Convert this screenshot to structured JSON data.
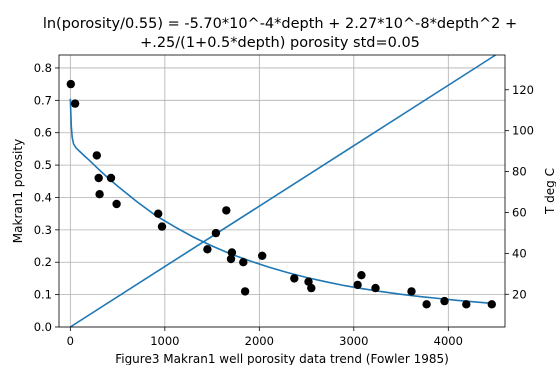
{
  "chart_data": {
    "type": "scatter",
    "title_line1": "ln(porosity/0.55) = -5.70*10^-4*depth + 2.27*10^-8*depth^2 +",
    "title_line2": "+.25/(1+0.5*depth)       porosity std=0.05",
    "xlabel": "Figure3 Makran1 well porosity data trend (Fowler 1985)",
    "ylabel": "Makran1 porosity",
    "y2label": "T deg C",
    "xlim": [
      -120,
      4600
    ],
    "ylim": [
      0,
      0.84
    ],
    "y2lim": [
      4,
      137
    ],
    "xticks": [
      0,
      1000,
      2000,
      3000,
      4000
    ],
    "yticks": [
      0.0,
      0.1,
      0.2,
      0.3,
      0.4,
      0.5,
      0.6,
      0.7,
      0.8
    ],
    "y2ticks": [
      20,
      40,
      60,
      80,
      100,
      120
    ],
    "grid": true,
    "colors": {
      "points": "#000000",
      "curves": "#1f77b4"
    },
    "points": {
      "x": [
        5,
        50,
        280,
        300,
        310,
        430,
        490,
        930,
        970,
        1450,
        1540,
        1650,
        1700,
        1710,
        1830,
        1850,
        2030,
        2370,
        2520,
        2550,
        3040,
        3080,
        3230,
        3610,
        3770,
        3960,
        4190,
        4460
      ],
      "y": [
        0.75,
        0.69,
        0.53,
        0.46,
        0.41,
        0.46,
        0.38,
        0.35,
        0.31,
        0.24,
        0.29,
        0.36,
        0.21,
        0.23,
        0.2,
        0.11,
        0.22,
        0.15,
        0.14,
        0.12,
        0.13,
        0.16,
        0.12,
        0.11,
        0.07,
        0.08,
        0.07,
        0.07
      ]
    },
    "series": [
      {
        "axis": "left",
        "x": [
          0,
          10,
          20,
          35,
          60,
          100,
          150,
          200,
          300,
          400,
          500,
          700,
          900,
          1100,
          1300,
          1500,
          1700,
          1900,
          2100,
          2300,
          2500,
          2700,
          2900,
          3100,
          3300,
          3500,
          3700,
          3900,
          4100,
          4300,
          4500
        ],
        "y": [
          0.705,
          0.62,
          0.585,
          0.565,
          0.553,
          0.542,
          0.528,
          0.515,
          0.487,
          0.46,
          0.435,
          0.388,
          0.345,
          0.31,
          0.278,
          0.25,
          0.225,
          0.204,
          0.185,
          0.168,
          0.153,
          0.14,
          0.128,
          0.118,
          0.109,
          0.101,
          0.094,
          0.088,
          0.082,
          0.077,
          0.072
        ]
      },
      {
        "axis": "right",
        "x": [
          0,
          4500
        ],
        "y": [
          4,
          137
        ]
      }
    ]
  }
}
